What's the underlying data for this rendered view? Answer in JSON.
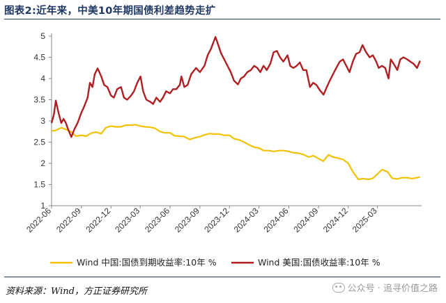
{
  "header": {
    "title": "图表2:近年来，中美10年期国债利差趋势走扩"
  },
  "footer": {
    "source": "资料来源：Wind，方正证券研究所",
    "watermark": "公众号 · 追寻价值之路"
  },
  "colors": {
    "china": "#f2c200",
    "us": "#b01e22",
    "brand": "#1f3864"
  },
  "chart_data": {
    "type": "line",
    "title": "",
    "xlabel": "",
    "ylabel": "",
    "ylim": [
      1,
      5
    ],
    "yticks": [
      1,
      1.5,
      2,
      2.5,
      3,
      3.5,
      4,
      4.5,
      5
    ],
    "xlim": [
      "2022-06-01",
      "2025-07-15"
    ],
    "xticks": [
      "2022-06",
      "2022-09",
      "2022-12",
      "2023-03",
      "2023-06",
      "2023-09",
      "2023-12",
      "2024-03",
      "2024-06",
      "2024-09",
      "2024-12",
      "2025-03"
    ],
    "grid": false,
    "legend": "bottom",
    "series": [
      {
        "name": "Wind 中国:国债到期收益率:10年 %",
        "color": "#f2c200",
        "x": [
          "2022-06-01",
          "2022-06-15",
          "2022-07-01",
          "2022-07-15",
          "2022-08-01",
          "2022-08-15",
          "2022-09-01",
          "2022-09-15",
          "2022-10-01",
          "2022-10-15",
          "2022-11-01",
          "2022-11-15",
          "2022-12-01",
          "2022-12-15",
          "2023-01-01",
          "2023-01-15",
          "2023-02-01",
          "2023-02-15",
          "2023-03-01",
          "2023-03-15",
          "2023-04-01",
          "2023-04-15",
          "2023-05-01",
          "2023-05-15",
          "2023-06-01",
          "2023-06-15",
          "2023-07-01",
          "2023-07-15",
          "2023-08-01",
          "2023-08-15",
          "2023-09-01",
          "2023-09-15",
          "2023-10-01",
          "2023-10-15",
          "2023-11-01",
          "2023-11-15",
          "2023-12-01",
          "2023-12-15",
          "2024-01-01",
          "2024-01-15",
          "2024-02-01",
          "2024-02-15",
          "2024-03-01",
          "2024-03-15",
          "2024-04-01",
          "2024-04-15",
          "2024-05-01",
          "2024-05-15",
          "2024-06-01",
          "2024-06-15",
          "2024-07-01",
          "2024-07-15",
          "2024-08-01",
          "2024-08-15",
          "2024-09-01",
          "2024-09-15",
          "2024-10-01",
          "2024-10-15",
          "2024-11-01",
          "2024-11-15",
          "2024-12-01",
          "2024-12-15",
          "2025-01-01",
          "2025-01-15",
          "2025-02-01",
          "2025-02-15",
          "2025-03-01",
          "2025-03-15",
          "2025-04-01",
          "2025-04-15",
          "2025-05-01",
          "2025-05-15",
          "2025-06-01",
          "2025-06-15",
          "2025-07-01",
          "2025-07-10"
        ],
        "values": [
          2.76,
          2.78,
          2.84,
          2.8,
          2.74,
          2.64,
          2.66,
          2.64,
          2.71,
          2.74,
          2.7,
          2.84,
          2.88,
          2.86,
          2.86,
          2.9,
          2.9,
          2.91,
          2.88,
          2.86,
          2.85,
          2.83,
          2.75,
          2.72,
          2.72,
          2.65,
          2.64,
          2.63,
          2.56,
          2.6,
          2.63,
          2.67,
          2.7,
          2.69,
          2.69,
          2.66,
          2.66,
          2.58,
          2.55,
          2.5,
          2.43,
          2.38,
          2.36,
          2.3,
          2.3,
          2.28,
          2.3,
          2.3,
          2.28,
          2.25,
          2.24,
          2.21,
          2.15,
          2.18,
          2.11,
          2.05,
          2.2,
          2.15,
          2.12,
          2.09,
          2.0,
          1.8,
          1.62,
          1.64,
          1.62,
          1.65,
          1.75,
          1.85,
          1.8,
          1.65,
          1.63,
          1.66,
          1.66,
          1.64,
          1.66,
          1.68
        ]
      },
      {
        "name": "Wind 美国:国债收益率:10年 %",
        "color": "#b01e22",
        "x": [
          "2022-06-01",
          "2022-06-08",
          "2022-06-14",
          "2022-06-22",
          "2022-07-01",
          "2022-07-08",
          "2022-07-15",
          "2022-07-22",
          "2022-08-01",
          "2022-08-10",
          "2022-08-20",
          "2022-09-01",
          "2022-09-10",
          "2022-09-20",
          "2022-09-27",
          "2022-10-05",
          "2022-10-12",
          "2022-10-21",
          "2022-11-01",
          "2022-11-10",
          "2022-11-20",
          "2022-12-01",
          "2022-12-10",
          "2022-12-20",
          "2023-01-01",
          "2023-01-10",
          "2023-01-20",
          "2023-02-01",
          "2023-02-10",
          "2023-02-20",
          "2023-03-02",
          "2023-03-10",
          "2023-03-20",
          "2023-04-01",
          "2023-04-10",
          "2023-04-20",
          "2023-05-01",
          "2023-05-10",
          "2023-05-20",
          "2023-06-01",
          "2023-06-10",
          "2023-06-20",
          "2023-07-01",
          "2023-07-06",
          "2023-07-15",
          "2023-07-25",
          "2023-08-05",
          "2023-08-20",
          "2023-09-01",
          "2023-09-15",
          "2023-09-25",
          "2023-10-05",
          "2023-10-19",
          "2023-10-27",
          "2023-11-05",
          "2023-11-15",
          "2023-11-25",
          "2023-12-05",
          "2023-12-15",
          "2023-12-27",
          "2024-01-05",
          "2024-01-15",
          "2024-01-25",
          "2024-02-05",
          "2024-02-15",
          "2024-02-25",
          "2024-03-05",
          "2024-03-15",
          "2024-03-25",
          "2024-04-05",
          "2024-04-15",
          "2024-04-25",
          "2024-05-05",
          "2024-05-15",
          "2024-05-28",
          "2024-06-05",
          "2024-06-15",
          "2024-06-25",
          "2024-07-05",
          "2024-07-15",
          "2024-07-25",
          "2024-08-05",
          "2024-08-15",
          "2024-08-25",
          "2024-09-05",
          "2024-09-16",
          "2024-09-25",
          "2024-10-05",
          "2024-10-15",
          "2024-10-25",
          "2024-11-05",
          "2024-11-15",
          "2024-11-25",
          "2024-12-05",
          "2024-12-15",
          "2024-12-25",
          "2025-01-05",
          "2025-01-14",
          "2025-01-25",
          "2025-02-05",
          "2025-02-15",
          "2025-02-25",
          "2025-03-05",
          "2025-03-15",
          "2025-03-25",
          "2025-04-04",
          "2025-04-11",
          "2025-04-20",
          "2025-05-01",
          "2025-05-10",
          "2025-05-20",
          "2025-06-01",
          "2025-06-10",
          "2025-06-20",
          "2025-07-01",
          "2025-07-10"
        ],
        "values": [
          2.95,
          3.15,
          3.48,
          3.2,
          2.95,
          3.05,
          2.95,
          2.8,
          2.62,
          2.8,
          2.95,
          3.2,
          3.35,
          3.55,
          3.9,
          3.8,
          4.1,
          4.24,
          4.05,
          3.85,
          3.8,
          3.6,
          3.55,
          3.75,
          3.8,
          3.55,
          3.5,
          3.6,
          3.7,
          3.9,
          4.05,
          3.7,
          3.5,
          3.45,
          3.4,
          3.55,
          3.45,
          3.55,
          3.7,
          3.65,
          3.75,
          3.75,
          3.85,
          4.05,
          3.8,
          3.85,
          4.1,
          4.25,
          4.15,
          4.3,
          4.55,
          4.7,
          4.98,
          4.8,
          4.6,
          4.45,
          4.3,
          4.15,
          3.95,
          3.86,
          4.0,
          4.05,
          4.15,
          4.2,
          4.3,
          4.25,
          4.15,
          4.3,
          4.2,
          4.35,
          4.62,
          4.65,
          4.5,
          4.4,
          4.55,
          4.3,
          4.25,
          4.3,
          4.38,
          4.2,
          4.2,
          3.8,
          3.9,
          3.85,
          3.72,
          3.62,
          3.78,
          3.95,
          4.1,
          4.25,
          4.4,
          4.45,
          4.3,
          4.15,
          4.4,
          4.58,
          4.62,
          4.79,
          4.62,
          4.5,
          4.55,
          4.4,
          4.25,
          4.3,
          4.25,
          4.0,
          4.45,
          4.35,
          4.2,
          4.45,
          4.5,
          4.45,
          4.4,
          4.35,
          4.25,
          4.42
        ]
      }
    ]
  }
}
